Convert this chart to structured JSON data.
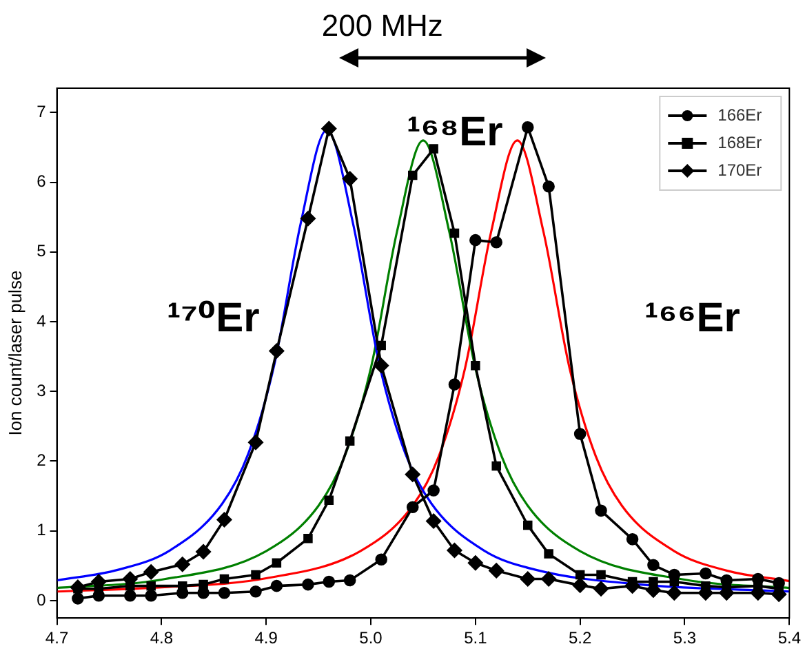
{
  "chart_data": {
    "type": "scatter",
    "ylabel": "Ion count/laser pulse",
    "xlim": [
      4.7,
      5.4
    ],
    "xticks": [
      {
        "value": 4.7,
        "label": "4.7"
      },
      {
        "value": 4.8,
        "label": "4.8"
      },
      {
        "value": 4.9,
        "label": "4.9"
      },
      {
        "value": 5.0,
        "label": "5.0"
      },
      {
        "value": 5.1,
        "label": "5.1"
      },
      {
        "value": 5.2,
        "label": "5.2"
      },
      {
        "value": 5.3,
        "label": "5.3"
      },
      {
        "value": 5.4,
        "label": "5.4"
      }
    ],
    "ylim": [
      -0.25,
      7.35
    ],
    "yticks": [
      0,
      1,
      2,
      3,
      4,
      5,
      6,
      7
    ],
    "grid": false,
    "legend": "top right",
    "annotations": [
      "200 MHz",
      "¹⁷⁰Er",
      "¹⁶⁸Er",
      "¹⁶⁶Er"
    ],
    "x": [
      4.72,
      4.74,
      4.77,
      4.79,
      4.82,
      4.84,
      4.86,
      4.89,
      4.91,
      4.94,
      4.96,
      4.98,
      5.01,
      5.04,
      5.06,
      5.08,
      5.1,
      5.12,
      5.15,
      5.17,
      5.2,
      5.22,
      5.25,
      5.27,
      5.29,
      5.32,
      5.34,
      5.37,
      5.39
    ],
    "series": [
      {
        "name": "166Er",
        "type": "line",
        "marker": "circle",
        "color": "#000000",
        "values": [
          0.03,
          0.07,
          0.07,
          0.07,
          0.11,
          0.11,
          0.11,
          0.13,
          0.21,
          0.23,
          0.27,
          0.29,
          0.59,
          1.34,
          1.58,
          3.1,
          5.17,
          5.14,
          6.79,
          5.94,
          2.39,
          1.29,
          0.88,
          0.51,
          0.37,
          0.39,
          0.29,
          0.31,
          0.25
        ]
      },
      {
        "name": "168Er",
        "type": "line",
        "marker": "square",
        "color": "#000000",
        "values": [
          0.17,
          0.17,
          0.21,
          0.21,
          0.21,
          0.23,
          0.31,
          0.37,
          0.54,
          0.89,
          1.44,
          2.29,
          3.66,
          6.1,
          6.48,
          5.27,
          3.37,
          1.93,
          1.08,
          0.67,
          0.37,
          0.37,
          0.27,
          0.27,
          0.27,
          0.21,
          0.19,
          0.21,
          0.17
        ]
      },
      {
        "name": "170Er",
        "type": "line",
        "marker": "diamond",
        "color": "#000000",
        "values": [
          0.19,
          0.27,
          0.31,
          0.41,
          0.52,
          0.7,
          1.16,
          2.27,
          3.58,
          5.48,
          6.77,
          6.05,
          3.37,
          1.81,
          1.14,
          0.72,
          0.54,
          0.43,
          0.31,
          0.31,
          0.22,
          0.17,
          0.21,
          0.15,
          0.11,
          0.11,
          0.11,
          0.11,
          0.09
        ]
      },
      {
        "type": "line",
        "marker": "none",
        "color": "#0000ff",
        "x": [
          4.7,
          4.758,
          4.808,
          4.858,
          4.883,
          4.908,
          4.933,
          4.958,
          4.983,
          5.008,
          5.033,
          5.058,
          5.108,
          5.158,
          5.258,
          5.4
        ],
        "values": [
          0.29,
          0.44,
          0.72,
          1.39,
          2.11,
          3.4,
          5.41,
          6.75,
          5.41,
          3.4,
          2.11,
          1.39,
          0.72,
          0.44,
          0.23,
          0.13
        ]
      },
      {
        "type": "line",
        "marker": "none",
        "color": "#008000",
        "x": [
          4.7,
          4.8,
          4.9,
          4.95,
          4.975,
          5.0,
          5.025,
          5.05,
          5.075,
          5.1,
          5.125,
          5.15,
          5.2,
          5.3,
          5.4
        ],
        "values": [
          0.18,
          0.3,
          0.71,
          1.36,
          2.07,
          3.33,
          5.29,
          6.6,
          5.29,
          3.33,
          2.07,
          1.36,
          0.71,
          0.3,
          0.18
        ]
      },
      {
        "type": "line",
        "marker": "none",
        "color": "#ff0000",
        "x": [
          4.7,
          4.8,
          4.9,
          4.99,
          5.04,
          5.065,
          5.09,
          5.115,
          5.14,
          5.165,
          5.19,
          5.215,
          5.24,
          5.29,
          5.34,
          5.4
        ],
        "values": [
          0.13,
          0.19,
          0.32,
          0.71,
          1.36,
          2.07,
          3.33,
          5.29,
          6.6,
          5.29,
          3.33,
          2.07,
          1.36,
          0.71,
          0.43,
          0.28
        ]
      }
    ]
  }
}
